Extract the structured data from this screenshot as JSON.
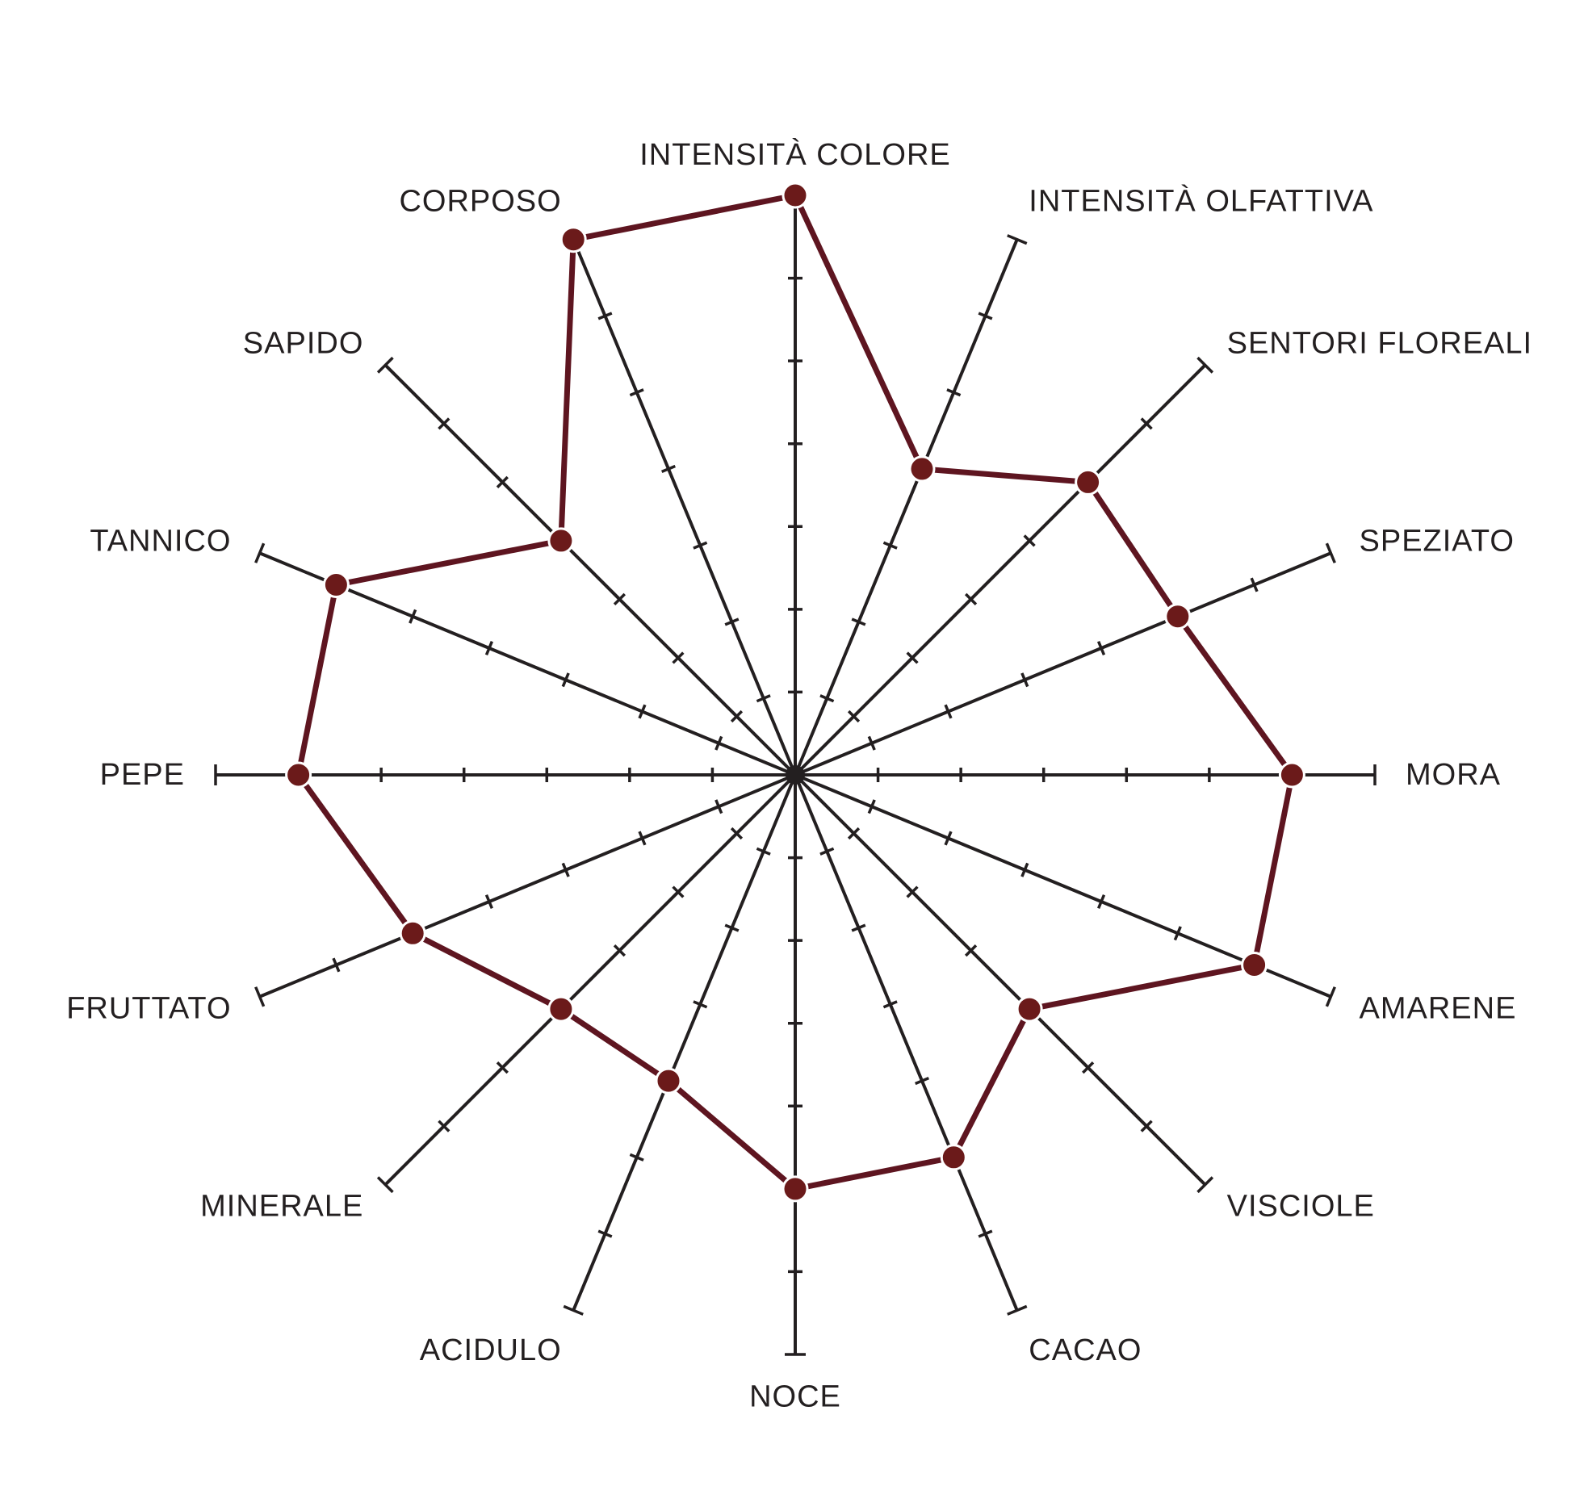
{
  "chart_data": {
    "type": "radar",
    "title": "",
    "scale_max": 7,
    "categories": [
      "INTENSITÀ COLORE",
      "INTENSITÀ OLFATTIVA",
      "SENTORI FLOREALI",
      "SPEZIATO",
      "MORA",
      "AMARENE",
      "VISCIOLE",
      "CACAO",
      "NOCE",
      "ACIDULO",
      "MINERALE",
      "FRUTTATO",
      "PEPE",
      "TANNICO",
      "SAPIDO",
      "CORPOSO"
    ],
    "series": [
      {
        "values": [
          7,
          4,
          5,
          5,
          6,
          6,
          4,
          5,
          5,
          4,
          4,
          5,
          6,
          6,
          4,
          7
        ],
        "color": "#5e1520",
        "marker_color": "#6b1a1a"
      }
    ],
    "axis_color": "#231f20",
    "grid": false,
    "legend": "none"
  }
}
